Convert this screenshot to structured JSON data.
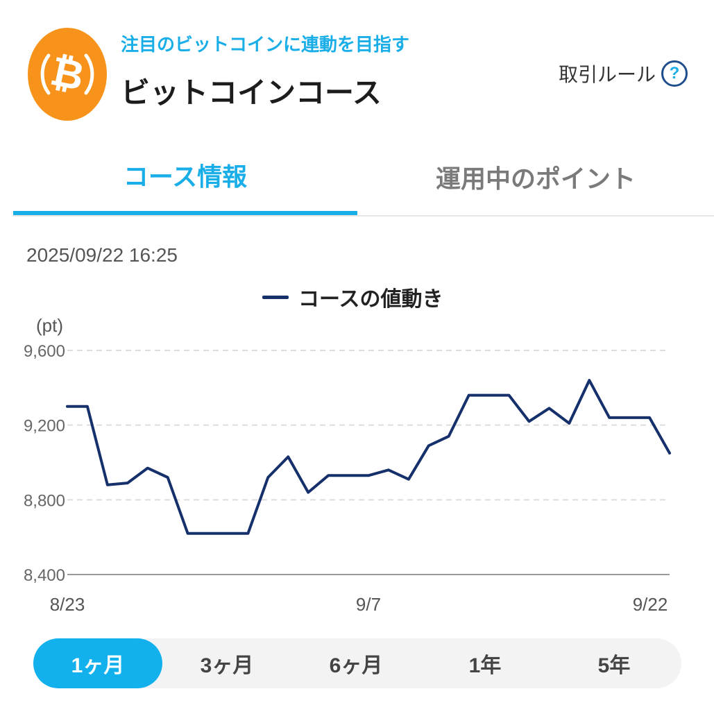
{
  "header": {
    "tagline": "注目のビットコインに連動を目指す",
    "title": "ビットコインコース",
    "rules_label": "取引ルール",
    "help_symbol": "?",
    "logo_symbol": "₿"
  },
  "tabs": [
    {
      "label": "コース情報",
      "active": true
    },
    {
      "label": "運用中のポイント",
      "active": false
    }
  ],
  "timestamp": "2025/09/22 16:25",
  "colors": {
    "accent": "#1aaee8",
    "line": "#15306b",
    "logo": "#f7931a"
  },
  "chart_data": {
    "type": "line",
    "series": [
      {
        "name": "コースの値動き",
        "values": [
          9300,
          9300,
          8880,
          8890,
          8970,
          8920,
          8620,
          8620,
          8620,
          8620,
          8920,
          9030,
          8840,
          8930,
          8930,
          8930,
          8960,
          8910,
          9090,
          9140,
          9360,
          9360,
          9360,
          9220,
          9290,
          9210,
          9440,
          9240,
          9240,
          9240,
          9050
        ]
      }
    ],
    "x_tick_labels": [
      "8/23",
      "9/7",
      "9/22"
    ],
    "y_ticks": [
      8400,
      8800,
      9200,
      9600
    ],
    "y_tick_labels": [
      "8,400",
      "8,800",
      "9,200",
      "9,600"
    ],
    "ylabel": "(pt)",
    "ylim": [
      8400,
      9600
    ],
    "grid": true,
    "legend": "top-center"
  },
  "ranges": [
    {
      "label": "1ヶ月",
      "active": true
    },
    {
      "label": "3ヶ月",
      "active": false
    },
    {
      "label": "6ヶ月",
      "active": false
    },
    {
      "label": "1年",
      "active": false
    },
    {
      "label": "5年",
      "active": false
    }
  ]
}
